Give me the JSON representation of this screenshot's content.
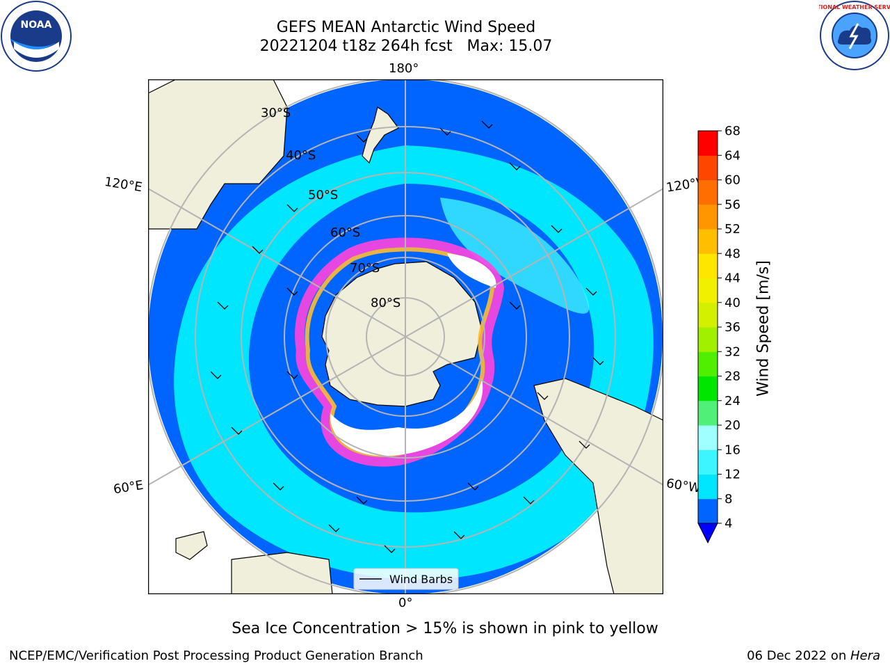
{
  "title": "GEFS MEAN Antarctic Wind Speed",
  "subtitle_line": "20221204 t18z 264h fcst   Max: 15.07",
  "caption": "Sea Ice Concentration > 15% is shown in pink to yellow",
  "footer_left": "NCEP/EMC/Verification Post Processing Product Generation Branch",
  "footer_date": "06 Dec 2022 on ",
  "footer_machine": "Hera",
  "legend_label": "Wind Barbs",
  "colorbar": {
    "label": "Wind Speed [m/s]",
    "ticks": [
      "4",
      "8",
      "12",
      "16",
      "20",
      "24",
      "28",
      "32",
      "36",
      "40",
      "44",
      "48",
      "52",
      "56",
      "60",
      "64",
      "68"
    ],
    "colors": [
      "#0064ff",
      "#00e6ff",
      "#3cf5ff",
      "#a0ffff",
      "#50f078",
      "#00e600",
      "#50ee00",
      "#a0f000",
      "#d2f000",
      "#f0f000",
      "#ffe600",
      "#ffbe00",
      "#ff9600",
      "#ff6e00",
      "#ff4600",
      "#ff0000"
    ],
    "under_color": "#0000ff"
  },
  "map": {
    "land_color": "#efefdb",
    "ocean_low": "#0064ff",
    "ocean_mid": "#00e6ff",
    "ocean_high": "#3cf5ff",
    "ice_color": "#ff44dd",
    "ice_inner": "#ffbb33",
    "lat_labels": [
      "30°S",
      "40°S",
      "50°S",
      "60°S",
      "70°S",
      "80°S"
    ],
    "lon_labels": {
      "top": "180°",
      "bottom": "0°",
      "left_upper": "120°E",
      "right_upper": "120°W",
      "left_lower": "60°E",
      "right_lower": "60°W"
    }
  },
  "logos": {
    "noaa_text": "NOAA",
    "nws_text": "NATIONAL WEATHER SERVICE"
  }
}
